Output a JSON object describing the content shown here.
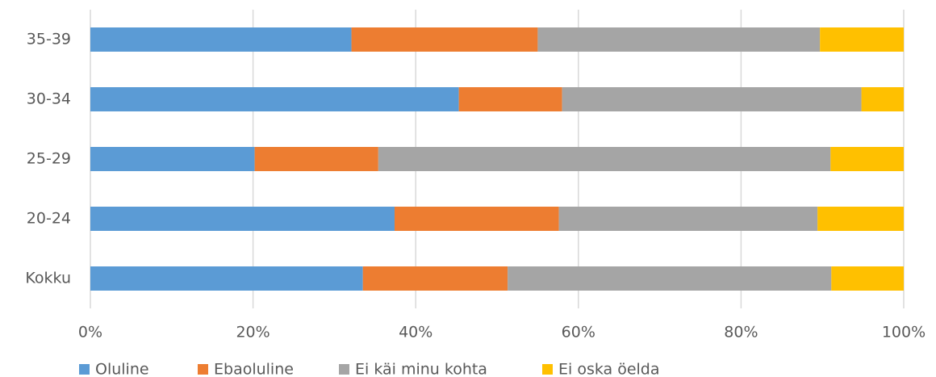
{
  "chart_data": {
    "type": "stacked_bar_horizontal",
    "categories": [
      "35-39",
      "30-34",
      "25-29",
      "20-24",
      "Kokku"
    ],
    "series": [
      {
        "name": "Oluline",
        "color": "#5b9bd5",
        "values": [
          32.1,
          45.3,
          20.2,
          37.4,
          33.5
        ]
      },
      {
        "name": "Ebaoluline",
        "color": "#ed7d31",
        "values": [
          22.9,
          12.7,
          15.2,
          20.2,
          17.8
        ]
      },
      {
        "name": "Ei käi minu kohta",
        "color": "#a5a5a5",
        "values": [
          34.7,
          36.8,
          55.6,
          31.8,
          39.8
        ]
      },
      {
        "name": "Ei oska öelda",
        "color": "#ffc000",
        "values": [
          10.3,
          5.2,
          9.0,
          10.6,
          8.9
        ]
      }
    ],
    "xlim": [
      0,
      100
    ],
    "xticks": [
      {
        "value": 0,
        "label": "0%"
      },
      {
        "value": 20,
        "label": "20%"
      },
      {
        "value": 40,
        "label": "40%"
      },
      {
        "value": 60,
        "label": "60%"
      },
      {
        "value": 80,
        "label": "80%"
      },
      {
        "value": 100,
        "label": "100%"
      }
    ],
    "grid": true,
    "legend": "bottom"
  }
}
